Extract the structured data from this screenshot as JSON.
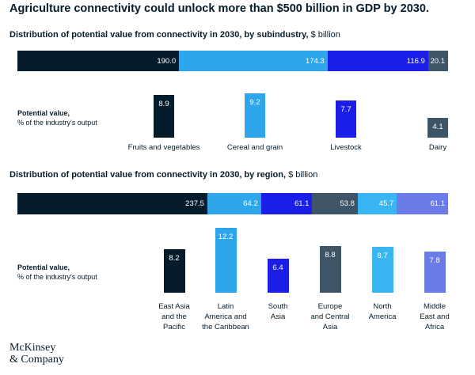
{
  "title": "Agriculture connectivity could unlock more than $500 billion in GDP by 2030.",
  "logo": {
    "line1": "McKinsey",
    "line2": "& Company"
  },
  "chart_data": [
    {
      "type": "bar",
      "title": "Distribution of potential value from connectivity in 2030, by subindustry,",
      "unit": "$ billion",
      "categories": [
        "Fruits and vegetables",
        "Cereal and grain",
        "Livestock",
        "Dairy"
      ],
      "stacked_values": [
        190.0,
        174.3,
        116.9,
        20.1
      ],
      "stacked_labels": [
        "190.0",
        "174.3",
        "116.9",
        "20.1"
      ],
      "secondary_label": {
        "bold": "Potential value,",
        "normal": "% of the industry's output"
      },
      "secondary_values": [
        8.9,
        9.2,
        7.7,
        4.1
      ],
      "secondary_labels": [
        "8.9",
        "9.2",
        "7.7",
        "4.1"
      ],
      "colors": [
        "#051c2c",
        "#2ea6ec",
        "#1a1ee6",
        "#3e5467"
      ]
    },
    {
      "type": "bar",
      "title": "Distribution of potential value from connectivity in 2030, by region,",
      "unit": "$ billion",
      "categories": [
        "East Asia\nand the\nPacific",
        "Latin\nAmerica and\nthe Caribbean",
        "South\nAsia",
        "Europe\nand Central\nAsia",
        "North\nAmerica",
        "Middle\nEast and\nAfrica"
      ],
      "stacked_values": [
        237.5,
        64.2,
        61.1,
        53.8,
        45.7,
        61.1
      ],
      "stacked_labels": [
        "237.5",
        "64.2",
        "61.1",
        "53.8",
        "45.7",
        "61.1"
      ],
      "secondary_label": {
        "bold": "Potential value,",
        "normal": "% of the industry's output"
      },
      "secondary_values": [
        8.2,
        12.2,
        6.4,
        8.8,
        8.7,
        7.8
      ],
      "secondary_labels": [
        "8.2",
        "12.2",
        "6.4",
        "8.8",
        "8.7",
        "7.8"
      ],
      "colors": [
        "#051c2c",
        "#2ea6ec",
        "#1a1ee6",
        "#3e5467",
        "#39b5f2",
        "#6b7be8"
      ]
    }
  ]
}
